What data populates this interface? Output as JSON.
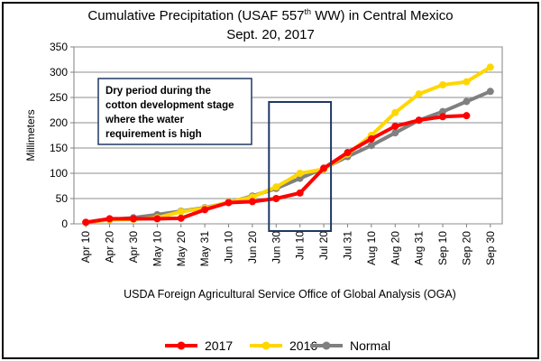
{
  "chart_data": {
    "type": "line",
    "title_prefix": "Cumulative Precipitation (USAF 557",
    "title_sup": "th",
    "title_suffix": " WW) in Central Mexico",
    "subtitle": "Sept. 20, 2017",
    "ylabel": "Millimeters",
    "xlabel": "USDA Foreign Agricultural Service Office of Global Analysis (OGA)",
    "ylim": [
      0,
      350
    ],
    "yticks": [
      0,
      50,
      100,
      150,
      200,
      250,
      300,
      350
    ],
    "grid": true,
    "legend_position": "bottom",
    "categories": [
      "Apr 10",
      "Apr 20",
      "Apr 30",
      "May 10",
      "May 20",
      "May 31",
      "Jun 10",
      "Jun 20",
      "Jun 30",
      "Jul 10",
      "Jul 20",
      "Jul 31",
      "Aug 10",
      "Aug 20",
      "Aug 31",
      "Sep 10",
      "Sep 20",
      "Sep 30"
    ],
    "series": [
      {
        "name": "Normal",
        "color": "#808080",
        "values": [
          3,
          8,
          12,
          18,
          25,
          32,
          42,
          55,
          70,
          90,
          110,
          133,
          155,
          180,
          205,
          222,
          242,
          262
        ]
      },
      {
        "name": "2016",
        "color": "#FFD700",
        "values": [
          3,
          8,
          9,
          12,
          24,
          31,
          43,
          53,
          73,
          100,
          108,
          138,
          175,
          220,
          257,
          275,
          281,
          310
        ]
      },
      {
        "name": "2017",
        "color": "#FF0000",
        "values": [
          3,
          10,
          10,
          10,
          11,
          28,
          42,
          44,
          50,
          61,
          110,
          141,
          168,
          193,
          205,
          212,
          214,
          null
        ]
      }
    ],
    "annotation": {
      "lines": [
        "Dry period during the",
        "cotton development stage",
        "where the water",
        "requirement is high"
      ],
      "highlight_range": [
        "Jun 30",
        "Jul 20"
      ]
    }
  }
}
